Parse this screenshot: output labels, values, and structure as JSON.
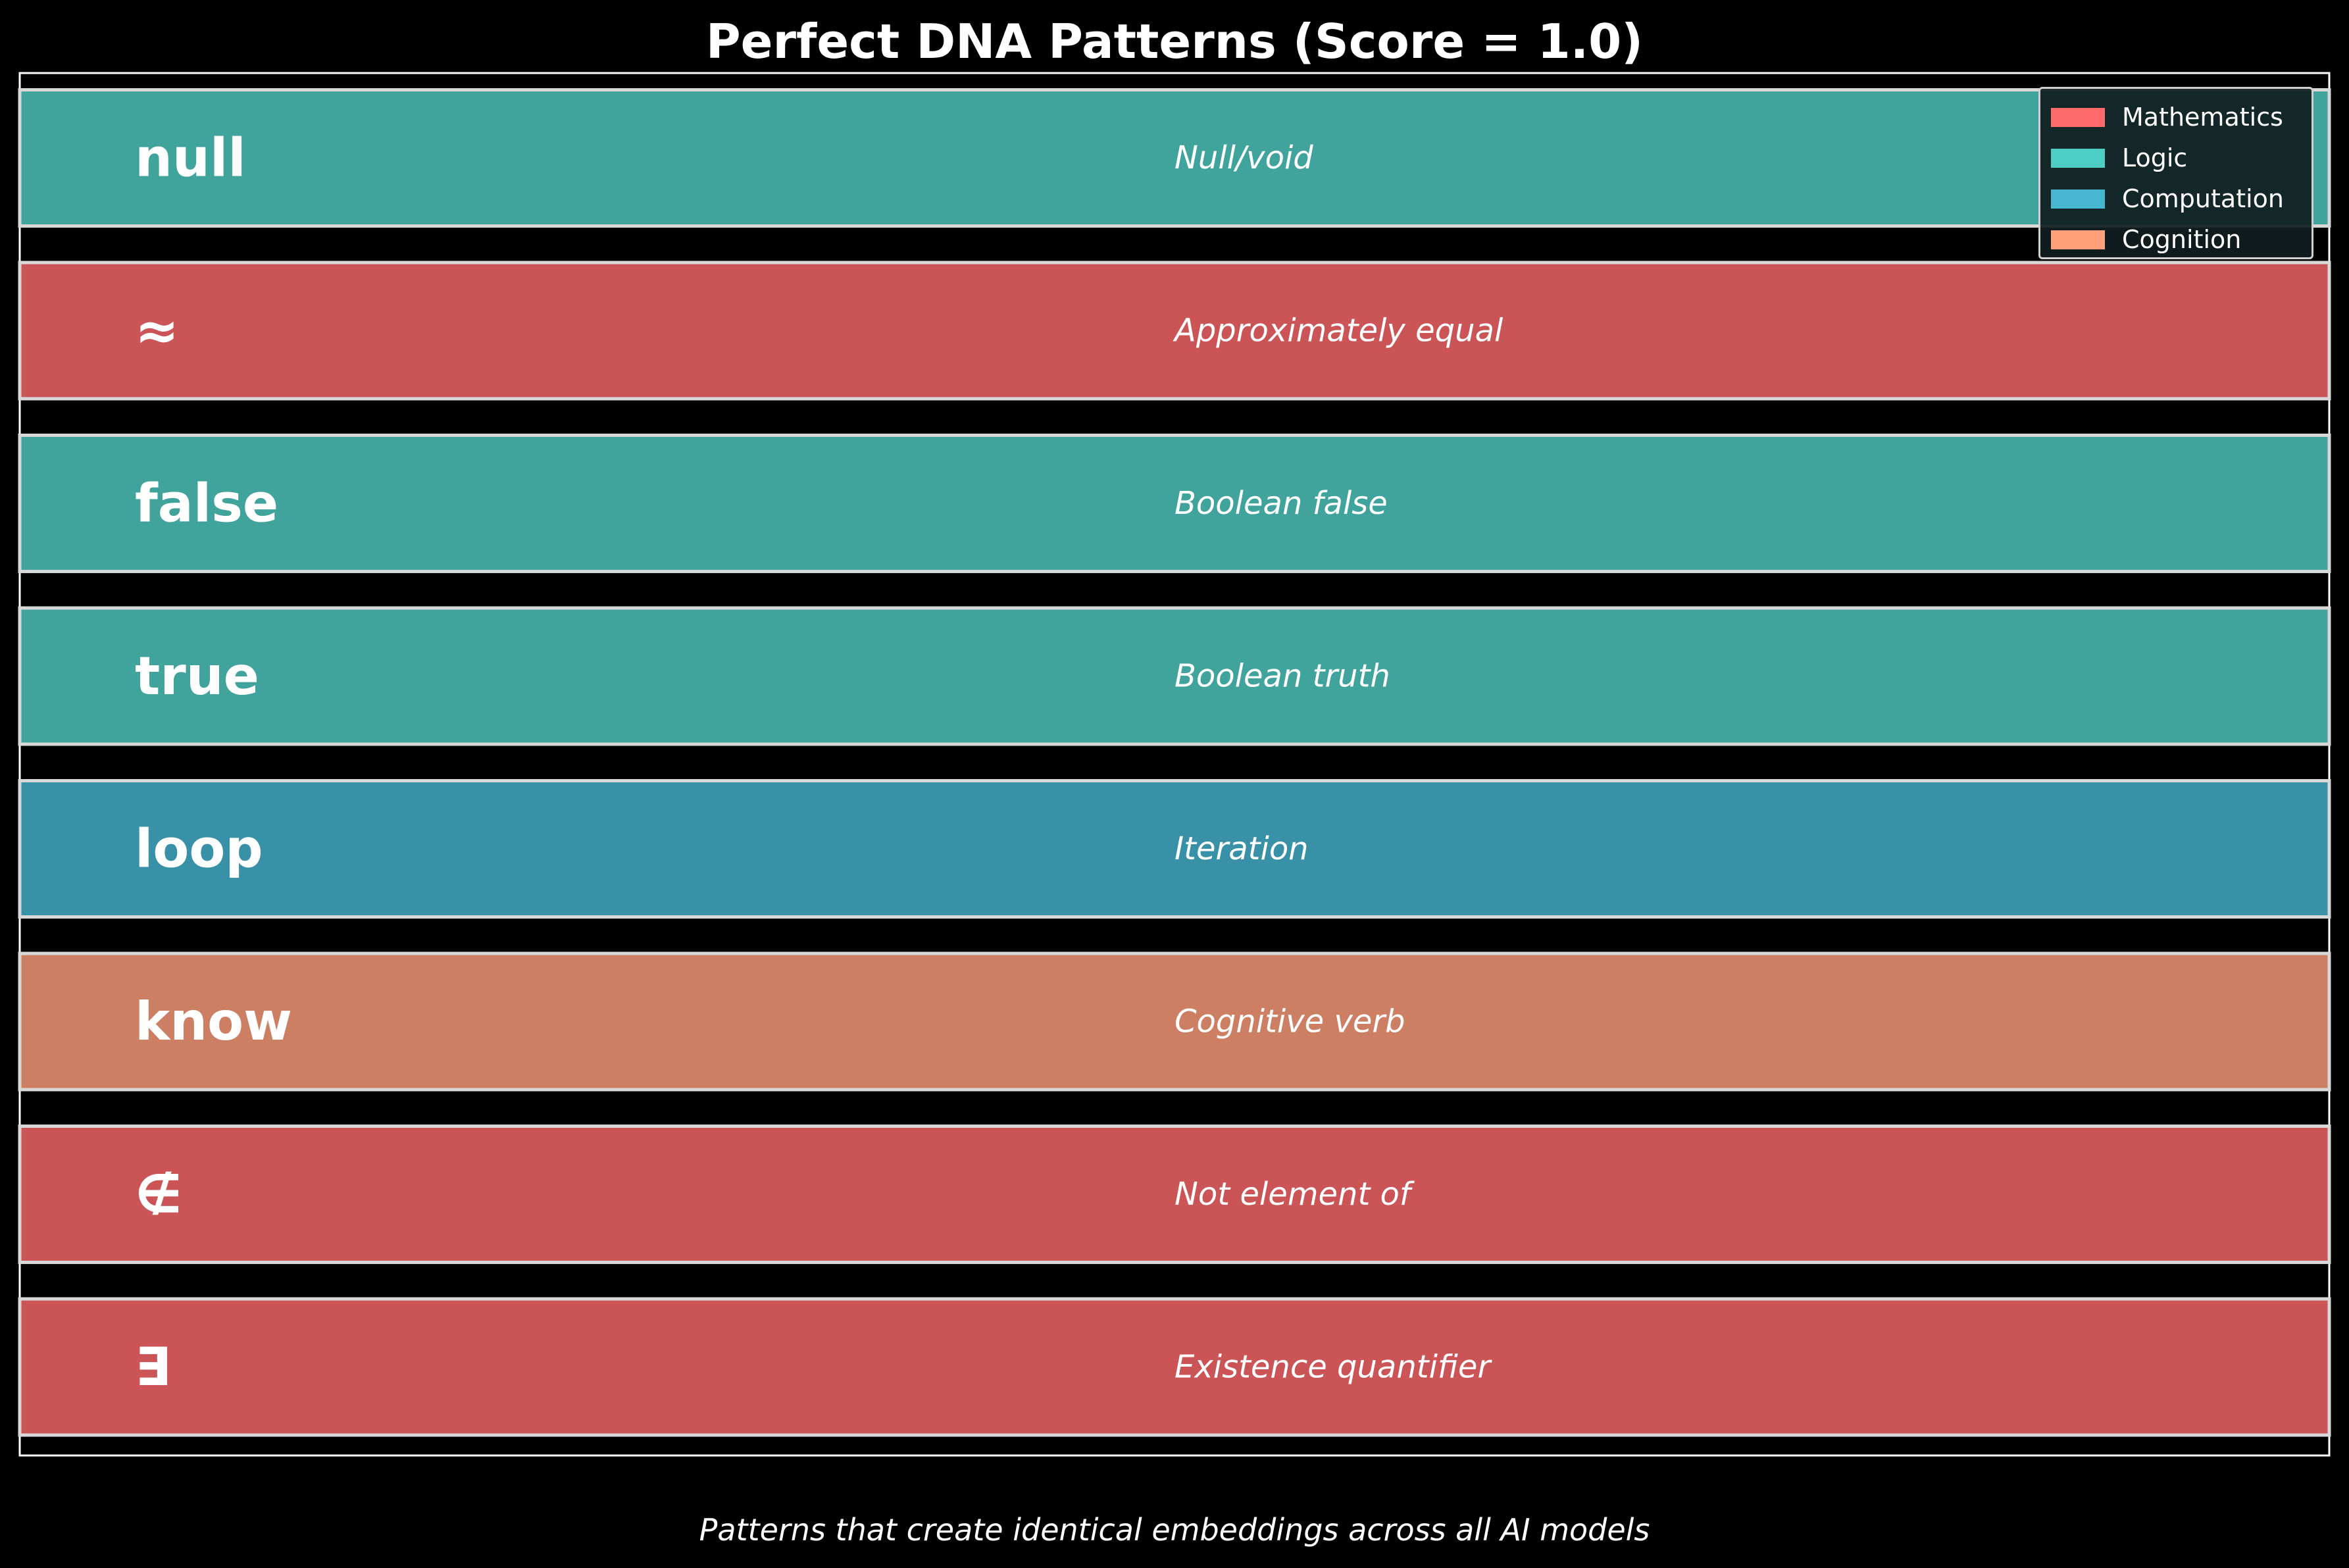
{
  "chart_data": {
    "type": "bar",
    "title": "Perfect DNA Patterns (Score = 1.0)",
    "caption": "Patterns that create identical embeddings across all AI models",
    "xlim": [
      0,
      1
    ],
    "bars": [
      {
        "pattern": "null",
        "description": "Null/void",
        "category": "Logic",
        "score": 1.0
      },
      {
        "pattern": "≈",
        "description": "Approximately equal",
        "category": "Mathematics",
        "score": 1.0
      },
      {
        "pattern": "false",
        "description": "Boolean false",
        "category": "Logic",
        "score": 1.0
      },
      {
        "pattern": "true",
        "description": "Boolean truth",
        "category": "Logic",
        "score": 1.0
      },
      {
        "pattern": "loop",
        "description": "Iteration",
        "category": "Computation",
        "score": 1.0
      },
      {
        "pattern": "know",
        "description": "Cognitive verb",
        "category": "Cognition",
        "score": 1.0
      },
      {
        "pattern": "∉",
        "description": "Not element of",
        "category": "Mathematics",
        "score": 1.0
      },
      {
        "pattern": "∃",
        "description": "Existence quantifier",
        "category": "Mathematics",
        "score": 1.0
      }
    ],
    "legend": {
      "placement": "top-right",
      "entries": [
        {
          "name": "Mathematics",
          "color": "#ff6b6b"
        },
        {
          "name": "Logic",
          "color": "#4ecdc4"
        },
        {
          "name": "Computation",
          "color": "#45b7d1"
        },
        {
          "name": "Cognition",
          "color": "#ffa07a"
        }
      ]
    },
    "bar_colors": {
      "Mathematics": "#cb5456",
      "Logic": "#40a39c",
      "Computation": "#3891a7",
      "Cognition": "#cc7f62"
    },
    "grid": false,
    "background": "#000000"
  }
}
